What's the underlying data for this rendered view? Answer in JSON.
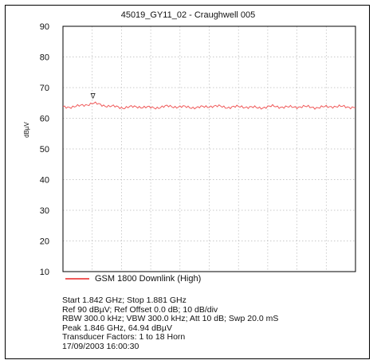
{
  "chart_data": {
    "type": "line",
    "title": "45019_GY11_02 - Craughwell 005",
    "ylabel": "dBµV",
    "xlabel": "",
    "ylim": [
      10,
      90
    ],
    "yticks": [
      "90",
      "80",
      "70",
      "60",
      "50",
      "40",
      "30",
      "20",
      "10"
    ],
    "x_range_ghz": [
      1.842,
      1.881
    ],
    "grid": true,
    "series": [
      {
        "name": "GSM 1800 Downlink (High)",
        "color": "#f05a5a",
        "x_ghz": [
          1.842,
          1.844,
          1.846,
          1.848,
          1.85,
          1.852,
          1.854,
          1.856,
          1.858,
          1.86,
          1.862,
          1.864,
          1.866,
          1.868,
          1.87,
          1.872,
          1.874,
          1.876,
          1.878,
          1.881
        ],
        "values": [
          63.6,
          63.9,
          64.9,
          64.0,
          63.5,
          63.8,
          63.4,
          63.9,
          63.7,
          63.5,
          64.0,
          63.6,
          63.8,
          63.4,
          63.9,
          63.6,
          63.8,
          63.5,
          63.9,
          63.6
        ]
      }
    ],
    "peak_marker": {
      "x_ghz": 1.846,
      "value": 64.94,
      "symbol": "∇"
    }
  },
  "info_lines": [
    "Start 1.842 GHz; Stop 1.881 GHz",
    "Ref 90 dBµV; Ref Offset 0.0 dB; 10 dB/div",
    "RBW 300.0 kHz; VBW 300.0 kHz; Att 10 dB; Swp 20.0 mS",
    "Peak 1.846 GHz, 64.94 dBµV",
    "Transducer Factors: 1 to 18 Horn",
    "17/09/2003 16:00:30"
  ]
}
